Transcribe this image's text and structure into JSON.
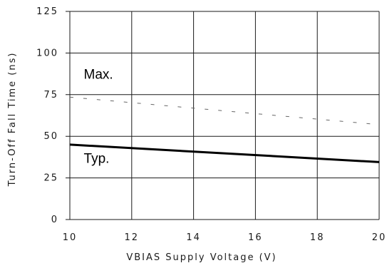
{
  "chart_data": {
    "type": "line",
    "title": "",
    "xlabel": "VBIAS Supply Voltage (V)",
    "ylabel": "Turn-Off Fall Time (ns)",
    "xlim": [
      10,
      20
    ],
    "ylim": [
      0,
      125
    ],
    "x_ticks": [
      "10",
      "12",
      "14",
      "16",
      "18",
      "20"
    ],
    "y_ticks": [
      "0",
      "25",
      "50",
      "75",
      "100",
      "125"
    ],
    "grid": true,
    "series": [
      {
        "name": "Max.",
        "style": "dashed",
        "color": "#666666",
        "x": [
          10,
          20
        ],
        "y": [
          73.5,
          57
        ]
      },
      {
        "name": "Typ.",
        "style": "solid",
        "color": "#000000",
        "x": [
          10,
          20
        ],
        "y": [
          45,
          34.5
        ]
      }
    ],
    "annotations": [
      {
        "text": "Max.",
        "x": 10.45,
        "y": 84.5
      },
      {
        "text": "Typ.",
        "x": 10.45,
        "y": 34
      }
    ]
  }
}
